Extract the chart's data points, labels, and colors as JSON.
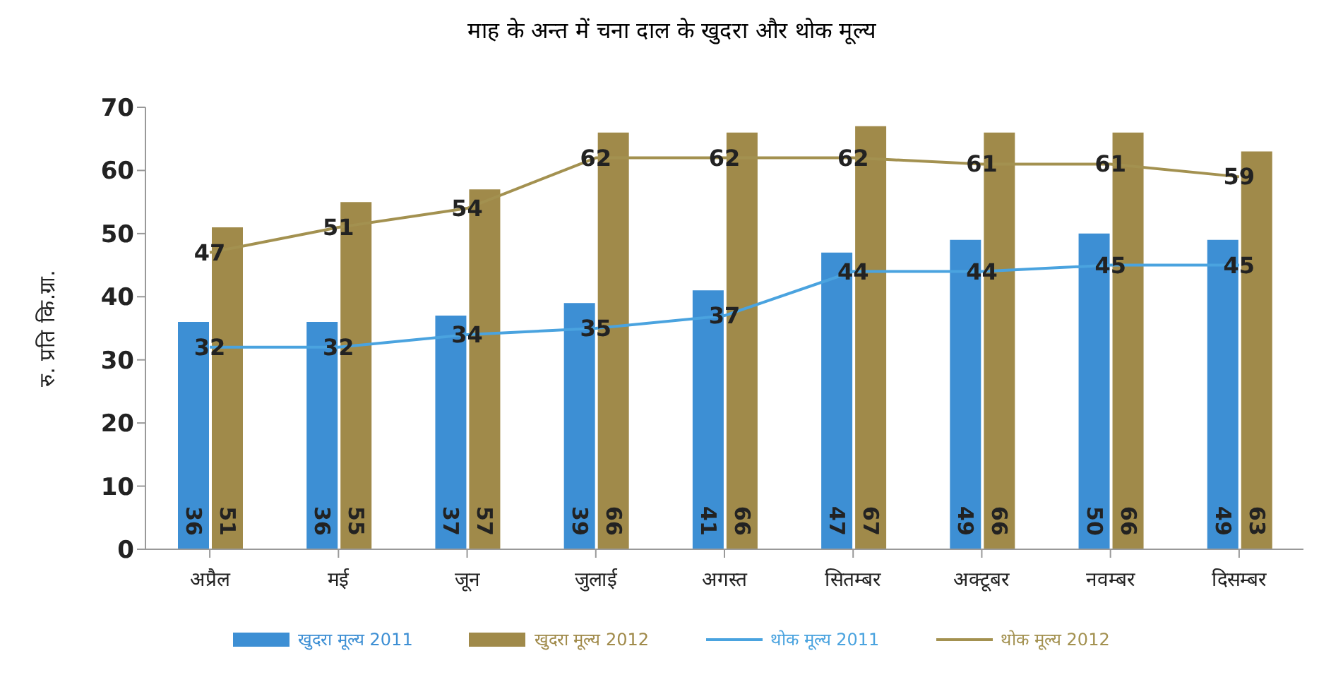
{
  "chart_data": {
    "type": "bar",
    "title": "माह के अन्त में चना दाल के खुदरा और थोक मूल्य",
    "ylabel": "रु. प्रति कि.ग्रा.",
    "categories": [
      "अप्रैल",
      "मई",
      "जून",
      "जुलाई",
      "अगस्त",
      "सितम्बर",
      "अक्टूबर",
      "नवम्बर",
      "दिसम्बर"
    ],
    "series": [
      {
        "name": "खुदरा मूल्य 2011",
        "color": "#3d8fd4",
        "values": [
          36,
          36,
          37,
          39,
          41,
          47,
          49,
          50,
          49
        ]
      },
      {
        "name": "खुदरा मूल्य 2012",
        "color": "#a08a4a",
        "values": [
          51,
          55,
          57,
          66,
          66,
          67,
          66,
          66,
          63
        ]
      },
      {
        "name": "थोक मूल्य 2011",
        "type": "line",
        "color": "#4aa3df",
        "values": [
          32,
          32,
          34,
          35,
          37,
          44,
          44,
          45,
          45
        ]
      },
      {
        "name": "थोक मूल्य 2012",
        "type": "line",
        "color": "#a39150",
        "values": [
          47,
          51,
          54,
          62,
          62,
          62,
          61,
          61,
          59
        ]
      }
    ],
    "ylim": [
      0,
      70
    ],
    "yticks": [
      0,
      10,
      20,
      30,
      40,
      50,
      60,
      70
    ],
    "grid": false,
    "legend": "bottom",
    "marker": "none",
    "data_labels": true
  }
}
